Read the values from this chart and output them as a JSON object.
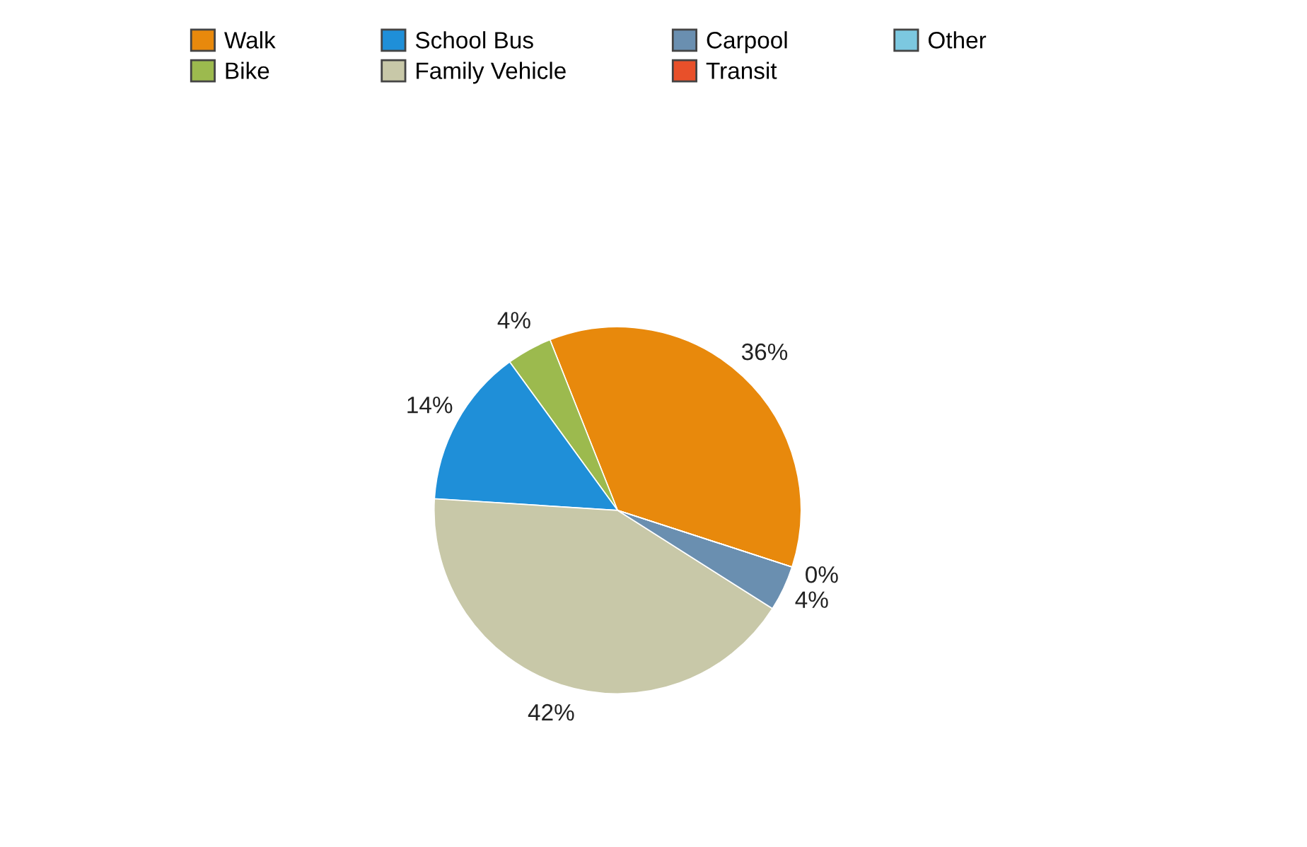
{
  "chart_data": {
    "type": "pie",
    "categories": [
      "Walk",
      "Bike",
      "School Bus",
      "Family Vehicle",
      "Carpool",
      "Transit",
      "Other"
    ],
    "values": [
      36,
      4,
      14,
      42,
      4,
      0,
      0
    ],
    "colors": [
      "#e8890c",
      "#9cba4e",
      "#1f8fd8",
      "#c8c8a8",
      "#6a8fb0",
      "#e8502a",
      "#7cc8e0"
    ],
    "value_labels": [
      "36%",
      "4%",
      "14%",
      "42%",
      "4%",
      "0%",
      null
    ],
    "legend": "top"
  }
}
